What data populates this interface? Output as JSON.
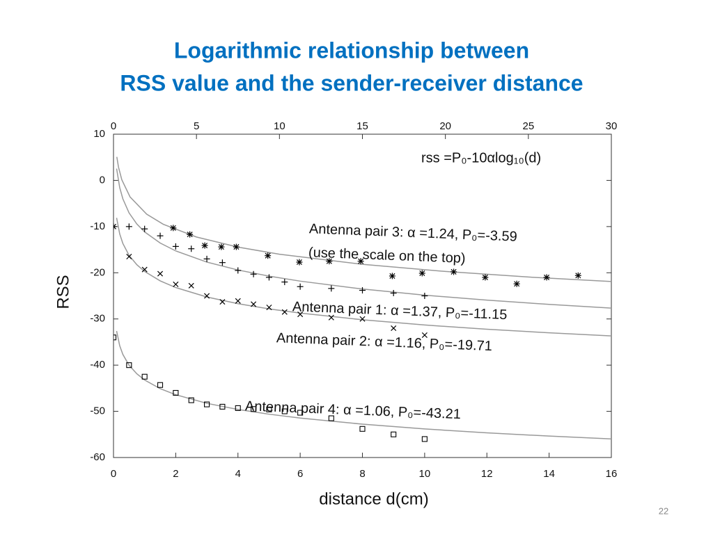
{
  "title": [
    "Logarithmic relationship between",
    "RSS value and the sender-receiver distance"
  ],
  "page_number": "22",
  "chart_data": {
    "type": "scatter",
    "xlabel": "distance d(cm)",
    "ylabel": "RSS",
    "xlim": [
      0,
      16
    ],
    "xticks": [
      0,
      2,
      4,
      6,
      8,
      10,
      12,
      14,
      16
    ],
    "x2lim": [
      0,
      30
    ],
    "x2ticks": [
      0,
      5,
      10,
      15,
      20,
      25,
      30
    ],
    "ylim": [
      -60,
      10
    ],
    "yticks": [
      -60,
      -50,
      -40,
      -30,
      -20,
      -10,
      0,
      10
    ],
    "annotations": [
      "rss =P₀-10αlog₁₀(d)",
      "Antenna pair 3:  α =1.24, P₀=-3.59",
      "(use the scale on the top)",
      "Antenna pair 1:  α =1.37, P₀=-11.15",
      "Antenna pair 2:  α =1.16, P₀=-19.71",
      "Antenna pair 4:  α =1.06, P₀=-43.21"
    ],
    "series": [
      {
        "type": "scatter",
        "marker": "plus",
        "color": "#000000",
        "x": [
          0,
          0.5,
          1,
          1.5,
          2,
          2.5,
          3,
          3.5,
          4,
          4.5,
          5,
          5.5,
          6,
          7,
          8,
          9,
          10
        ],
        "values": [
          -10,
          -10,
          -10.5,
          -12,
          -14.3,
          -14.8,
          -17,
          -17.8,
          -19.5,
          -20.3,
          -21,
          -22,
          -23,
          -23.4,
          -23.8,
          -24.4,
          -25
        ]
      },
      {
        "type": "scatter",
        "marker": "cross",
        "color": "#000000",
        "x": [
          0,
          0.5,
          1,
          1.5,
          2,
          2.5,
          3,
          3.5,
          4,
          4.5,
          5,
          5.5,
          6,
          7,
          8,
          9,
          10
        ],
        "values": [
          -10,
          -16.5,
          -19.3,
          -20.2,
          -22.5,
          -22.8,
          -25,
          -26.3,
          -26.1,
          -26.8,
          -27.5,
          -28.5,
          -29,
          -29.7,
          -30,
          -32,
          -33.5
        ]
      },
      {
        "type": "scatter",
        "marker": "star",
        "color": "#000000",
        "axis": "x2",
        "x": [
          3.6,
          4.6,
          5.5,
          6.5,
          7.4,
          9.3,
          11.2,
          13.0,
          14.9,
          16.8,
          18.6,
          20.5,
          22.4,
          24.3,
          26.1,
          28.0
        ],
        "values": [
          -10.3,
          -11.7,
          -14.1,
          -14.4,
          -14.4,
          -16.3,
          -17.7,
          -17.5,
          -17.5,
          -20.7,
          -20.1,
          -19.8,
          -21,
          -22.4,
          -21,
          -20.6
        ]
      },
      {
        "type": "scatter",
        "marker": "square",
        "color": "#000000",
        "x": [
          0,
          0.5,
          1,
          1.5,
          2,
          2.5,
          3,
          3.5,
          4,
          4.5,
          5,
          5.5,
          6,
          7,
          8,
          9,
          10
        ],
        "values": [
          -34,
          -40,
          -42.5,
          -44.3,
          -46,
          -47.6,
          -48.5,
          -49,
          -49.3,
          -49.5,
          -49.6,
          -50,
          -50.3,
          -51.5,
          -53.8,
          -55,
          -56
        ]
      },
      {
        "type": "line",
        "color": "#999999",
        "x": [
          0.1,
          0.2,
          0.3,
          0.5,
          0.75,
          1,
          1.5,
          2,
          3,
          4,
          5,
          6,
          8,
          10,
          12,
          14,
          16
        ],
        "values": [
          2.55,
          -1.57,
          -3.98,
          -7.03,
          -9.44,
          -11.15,
          -13.56,
          -15.27,
          -17.69,
          -19.4,
          -20.73,
          -21.81,
          -23.52,
          -24.85,
          -25.93,
          -26.85,
          -27.65
        ]
      },
      {
        "type": "line",
        "color": "#999999",
        "x": [
          0.1,
          0.2,
          0.3,
          0.5,
          0.75,
          1,
          1.5,
          2,
          3,
          4,
          5,
          6,
          8,
          10,
          12,
          14,
          16
        ],
        "values": [
          -8.11,
          -11.6,
          -13.64,
          -16.22,
          -18.26,
          -19.71,
          -21.75,
          -23.2,
          -25.24,
          -26.69,
          -27.82,
          -28.73,
          -30.18,
          -31.31,
          -32.23,
          -33.0,
          -33.68
        ]
      },
      {
        "type": "line",
        "color": "#999999",
        "axis": "x2",
        "x": [
          0.2,
          0.3,
          0.5,
          1,
          2,
          3,
          5,
          7.5,
          10,
          15,
          20,
          25,
          30
        ],
        "values": [
          5.08,
          2.9,
          0.14,
          -3.59,
          -7.32,
          -9.5,
          -12.26,
          -14.44,
          -15.99,
          -18.17,
          -19.72,
          -20.92,
          -21.9
        ]
      },
      {
        "type": "line",
        "color": "#999999",
        "x": [
          0.1,
          0.2,
          0.3,
          0.5,
          0.75,
          1,
          1.5,
          2,
          3,
          4,
          5,
          6,
          8,
          10,
          12,
          14,
          16
        ],
        "values": [
          -32.61,
          -35.8,
          -37.67,
          -40.02,
          -41.88,
          -43.21,
          -45.08,
          -46.4,
          -48.27,
          -49.59,
          -50.62,
          -51.46,
          -52.78,
          -53.81,
          -54.65,
          -55.36,
          -55.97
        ]
      }
    ]
  }
}
